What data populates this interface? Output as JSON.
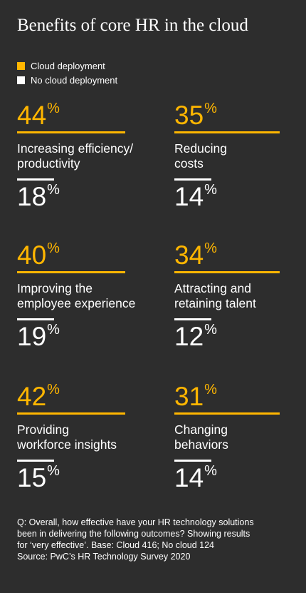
{
  "title": "Benefits of core HR in the cloud",
  "legend": [
    {
      "label": "Cloud deployment",
      "color": "#ffb600"
    },
    {
      "label": "No cloud deployment",
      "color": "#ffffff"
    }
  ],
  "chart_data": {
    "type": "table",
    "series": [
      {
        "name": "Cloud deployment",
        "values": [
          44,
          35,
          40,
          34,
          42,
          31
        ]
      },
      {
        "name": "No cloud deployment",
        "values": [
          18,
          14,
          19,
          12,
          15,
          14
        ]
      }
    ],
    "categories": [
      "Increasing efficiency/ productivity",
      "Reducing costs",
      "Improving the employee experience",
      "Attracting and retaining talent",
      "Providing workforce insights",
      "Changing behaviors"
    ],
    "items": [
      {
        "label_lines": [
          "Increasing efficiency/",
          "productivity"
        ],
        "cloud": "44",
        "no_cloud": "18"
      },
      {
        "label_lines": [
          "Reducing",
          "costs"
        ],
        "cloud": "35",
        "no_cloud": "14"
      },
      {
        "label_lines": [
          "Improving the",
          "employee experience"
        ],
        "cloud": "40",
        "no_cloud": "19"
      },
      {
        "label_lines": [
          "Attracting and",
          "retaining talent"
        ],
        "cloud": "34",
        "no_cloud": "12"
      },
      {
        "label_lines": [
          "Providing",
          "workforce insights"
        ],
        "cloud": "42",
        "no_cloud": "15"
      },
      {
        "label_lines": [
          "Changing",
          "behaviors"
        ],
        "cloud": "31",
        "no_cloud": "14"
      }
    ],
    "unit": "%"
  },
  "footnote": {
    "lines": [
      "Q: Overall, how effective have your HR technology solutions",
      "been in delivering the following outcomes? Showing results",
      "for ‘very effective’. Base: Cloud 416; No cloud 124",
      "Source: PwC’s HR Technology Survey 2020"
    ]
  }
}
